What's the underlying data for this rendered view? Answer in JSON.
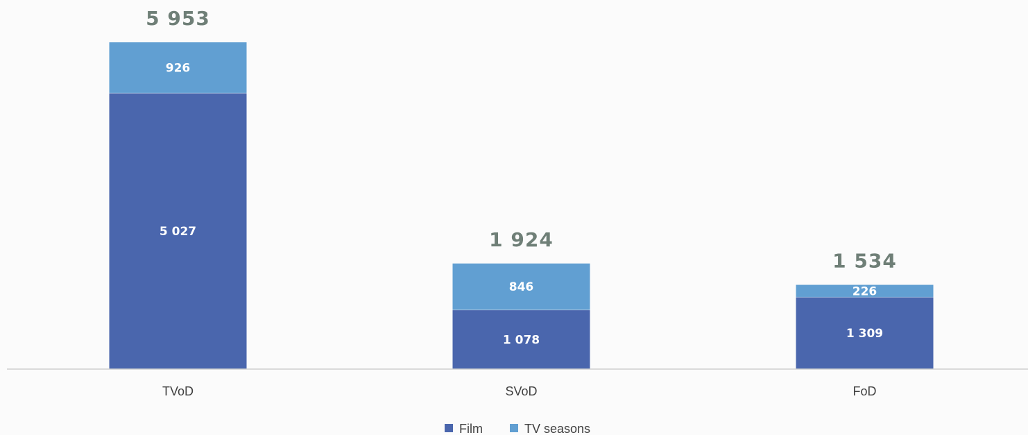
{
  "chart_data": {
    "type": "bar",
    "stacked": true,
    "categories": [
      "TVoD",
      "SVoD",
      "FoD"
    ],
    "series": [
      {
        "name": "Film",
        "color": "#4a66ad",
        "values": [
          5027,
          1078,
          1309
        ],
        "labels": [
          "5 027",
          "1 078",
          "1 309"
        ]
      },
      {
        "name": "TV seasons",
        "color": "#619fd2",
        "values": [
          926,
          846,
          226
        ],
        "labels": [
          "926",
          "846",
          "226"
        ]
      }
    ],
    "totals": [
      5953,
      1924,
      1534
    ],
    "total_labels": [
      "5 953",
      "1 924",
      "1 534"
    ],
    "ylim": [
      0,
      5953
    ],
    "grid": false,
    "legend": "bottom",
    "colors": {
      "baseline": "#d0d0d0",
      "total_text": "#6f7f77"
    }
  }
}
